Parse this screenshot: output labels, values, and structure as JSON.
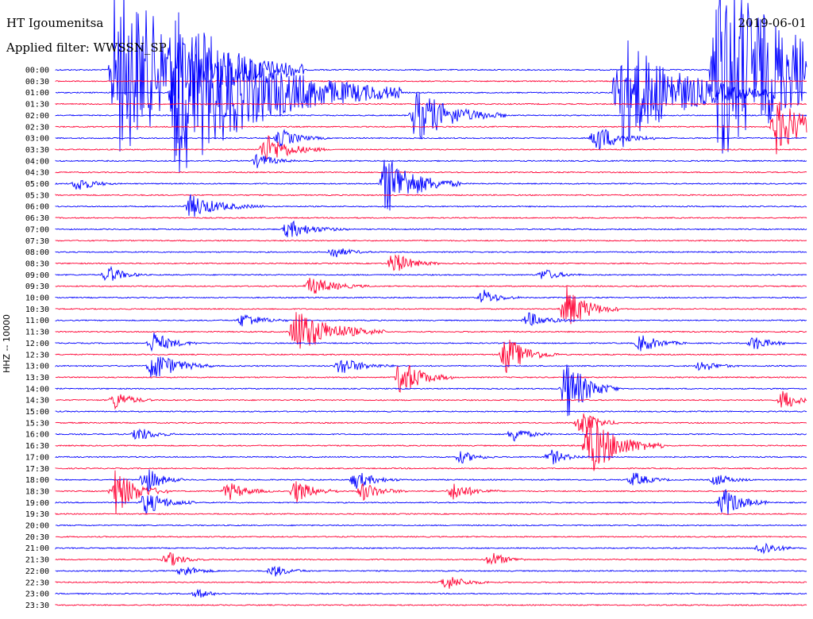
{
  "header": {
    "station": "HT Igoumenitsa",
    "filter": "Applied filter: WWSSN_SP",
    "date": "2019-06-01"
  },
  "chart_data": {
    "type": "line",
    "title": "HT Igoumenitsa",
    "ylabel": "HHZ -- 10000",
    "tick_labels": [
      "00:00",
      "00:30",
      "01:00",
      "01:30",
      "02:00",
      "02:30",
      "03:00",
      "03:30",
      "04:00",
      "04:30",
      "05:00",
      "05:30",
      "06:00",
      "06:30",
      "07:00",
      "07:30",
      "08:00",
      "08:30",
      "09:00",
      "09:30",
      "10:00",
      "10:30",
      "11:00",
      "11:30",
      "12:00",
      "12:30",
      "13:00",
      "13:30",
      "14:00",
      "14:30",
      "15:00",
      "15:30",
      "16:00",
      "16:30",
      "17:00",
      "17:30",
      "18:00",
      "18:30",
      "19:00",
      "19:30",
      "20:00",
      "20:30",
      "21:00",
      "21:30",
      "22:00",
      "22:30",
      "23:00",
      "23:30"
    ],
    "colors": {
      "even": "#0000ff",
      "odd": "#ff0033",
      "bg": "#ffffff",
      "text": "#000000"
    },
    "events": [
      {
        "row": 0,
        "t": 0.08,
        "amp": 120,
        "dur": 0.25
      },
      {
        "row": 0,
        "t": 0.88,
        "amp": 130,
        "dur": 0.3
      },
      {
        "row": 2,
        "t": 0.16,
        "amp": 110,
        "dur": 0.3
      },
      {
        "row": 2,
        "t": 0.75,
        "amp": 80,
        "dur": 0.2
      },
      {
        "row": 4,
        "t": 0.48,
        "amp": 35,
        "dur": 0.12
      },
      {
        "row": 5,
        "t": 0.96,
        "amp": 35,
        "dur": 0.12
      },
      {
        "row": 6,
        "t": 0.3,
        "amp": 12,
        "dur": 0.06
      },
      {
        "row": 6,
        "t": 0.72,
        "amp": 18,
        "dur": 0.08
      },
      {
        "row": 7,
        "t": 0.28,
        "amp": 20,
        "dur": 0.08
      },
      {
        "row": 8,
        "t": 0.27,
        "amp": 10,
        "dur": 0.05
      },
      {
        "row": 10,
        "t": 0.03,
        "amp": 10,
        "dur": 0.05
      },
      {
        "row": 10,
        "t": 0.44,
        "amp": 40,
        "dur": 0.1
      },
      {
        "row": 12,
        "t": 0.18,
        "amp": 15,
        "dur": 0.1
      },
      {
        "row": 14,
        "t": 0.31,
        "amp": 12,
        "dur": 0.08
      },
      {
        "row": 16,
        "t": 0.37,
        "amp": 8,
        "dur": 0.05
      },
      {
        "row": 17,
        "t": 0.45,
        "amp": 15,
        "dur": 0.06
      },
      {
        "row": 18,
        "t": 0.07,
        "amp": 12,
        "dur": 0.05
      },
      {
        "row": 18,
        "t": 0.65,
        "amp": 8,
        "dur": 0.05
      },
      {
        "row": 19,
        "t": 0.34,
        "amp": 12,
        "dur": 0.08
      },
      {
        "row": 20,
        "t": 0.57,
        "amp": 10,
        "dur": 0.05
      },
      {
        "row": 21,
        "t": 0.68,
        "amp": 30,
        "dur": 0.07
      },
      {
        "row": 22,
        "t": 0.25,
        "amp": 10,
        "dur": 0.06
      },
      {
        "row": 22,
        "t": 0.63,
        "amp": 10,
        "dur": 0.06
      },
      {
        "row": 23,
        "t": 0.32,
        "amp": 30,
        "dur": 0.12
      },
      {
        "row": 24,
        "t": 0.13,
        "amp": 15,
        "dur": 0.06
      },
      {
        "row": 24,
        "t": 0.78,
        "amp": 12,
        "dur": 0.06
      },
      {
        "row": 24,
        "t": 0.93,
        "amp": 10,
        "dur": 0.05
      },
      {
        "row": 25,
        "t": 0.6,
        "amp": 25,
        "dur": 0.07
      },
      {
        "row": 26,
        "t": 0.13,
        "amp": 20,
        "dur": 0.08
      },
      {
        "row": 26,
        "t": 0.38,
        "amp": 12,
        "dur": 0.07
      },
      {
        "row": 26,
        "t": 0.86,
        "amp": 8,
        "dur": 0.05
      },
      {
        "row": 27,
        "t": 0.46,
        "amp": 25,
        "dur": 0.07
      },
      {
        "row": 28,
        "t": 0.68,
        "amp": 40,
        "dur": 0.07
      },
      {
        "row": 29,
        "t": 0.08,
        "amp": 12,
        "dur": 0.05
      },
      {
        "row": 29,
        "t": 0.97,
        "amp": 15,
        "dur": 0.04
      },
      {
        "row": 31,
        "t": 0.7,
        "amp": 18,
        "dur": 0.05
      },
      {
        "row": 32,
        "t": 0.11,
        "amp": 10,
        "dur": 0.05
      },
      {
        "row": 32,
        "t": 0.61,
        "amp": 10,
        "dur": 0.05
      },
      {
        "row": 33,
        "t": 0.71,
        "amp": 40,
        "dur": 0.1
      },
      {
        "row": 34,
        "t": 0.54,
        "amp": 8,
        "dur": 0.05
      },
      {
        "row": 34,
        "t": 0.66,
        "amp": 10,
        "dur": 0.05
      },
      {
        "row": 36,
        "t": 0.12,
        "amp": 18,
        "dur": 0.05
      },
      {
        "row": 36,
        "t": 0.4,
        "amp": 12,
        "dur": 0.06
      },
      {
        "row": 36,
        "t": 0.77,
        "amp": 10,
        "dur": 0.05
      },
      {
        "row": 36,
        "t": 0.88,
        "amp": 8,
        "dur": 0.05
      },
      {
        "row": 37,
        "t": 0.08,
        "amp": 30,
        "dur": 0.07
      },
      {
        "row": 37,
        "t": 0.23,
        "amp": 12,
        "dur": 0.06
      },
      {
        "row": 37,
        "t": 0.32,
        "amp": 15,
        "dur": 0.06
      },
      {
        "row": 37,
        "t": 0.41,
        "amp": 12,
        "dur": 0.06
      },
      {
        "row": 37,
        "t": 0.53,
        "amp": 12,
        "dur": 0.06
      },
      {
        "row": 38,
        "t": 0.12,
        "amp": 15,
        "dur": 0.07
      },
      {
        "row": 38,
        "t": 0.89,
        "amp": 20,
        "dur": 0.06
      },
      {
        "row": 42,
        "t": 0.94,
        "amp": 10,
        "dur": 0.05
      },
      {
        "row": 43,
        "t": 0.15,
        "amp": 10,
        "dur": 0.05
      },
      {
        "row": 43,
        "t": 0.58,
        "amp": 10,
        "dur": 0.05
      },
      {
        "row": 44,
        "t": 0.17,
        "amp": 8,
        "dur": 0.05
      },
      {
        "row": 44,
        "t": 0.29,
        "amp": 8,
        "dur": 0.05
      },
      {
        "row": 45,
        "t": 0.52,
        "amp": 10,
        "dur": 0.06
      },
      {
        "row": 46,
        "t": 0.19,
        "amp": 6,
        "dur": 0.04
      }
    ]
  }
}
